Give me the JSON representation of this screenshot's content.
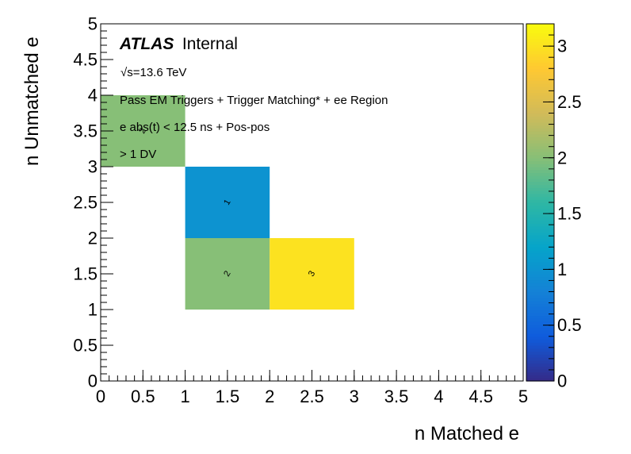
{
  "chart_data": {
    "type": "heatmap",
    "xlabel": "n Matched e",
    "ylabel": "n Unmatched e",
    "xlim": [
      0,
      5
    ],
    "ylim": [
      0,
      5
    ],
    "x_ticks": [
      "0",
      "0.5",
      "1",
      "1.5",
      "2",
      "2.5",
      "3",
      "3.5",
      "4",
      "4.5",
      "5"
    ],
    "y_ticks": [
      "0",
      "0.5",
      "1",
      "1.5",
      "2",
      "2.5",
      "3",
      "3.5",
      "4",
      "4.5",
      "5"
    ],
    "bin_width": 1,
    "cells": [
      {
        "x": 0,
        "y": 3,
        "value": 2,
        "label": "2"
      },
      {
        "x": 1,
        "y": 2,
        "value": 1,
        "label": "1"
      },
      {
        "x": 1,
        "y": 1,
        "value": 2,
        "label": "2"
      },
      {
        "x": 2,
        "y": 1,
        "value": 3,
        "label": "3"
      }
    ],
    "colorbar": {
      "range": [
        0,
        3.2
      ],
      "ticks": [
        "0",
        "0.5",
        "1",
        "1.5",
        "2",
        "2.5",
        "3"
      ],
      "palette": [
        "#352a87",
        "#0f5cdd",
        "#1481d6",
        "#06a4ca",
        "#2eb7a4",
        "#87bf77",
        "#d1bb59",
        "#fec832",
        "#f9fb0e"
      ]
    },
    "grid": false,
    "legend": "none"
  },
  "annotations": {
    "atlas": "ATLAS",
    "internal": "Internal",
    "energy": "√s=13.6 TeV",
    "line1": "Pass EM Triggers + Trigger Matching* + ee Region",
    "line2": "e abs(t) < 12.5 ns + Pos-pos",
    "line3": "> 1 DV"
  }
}
